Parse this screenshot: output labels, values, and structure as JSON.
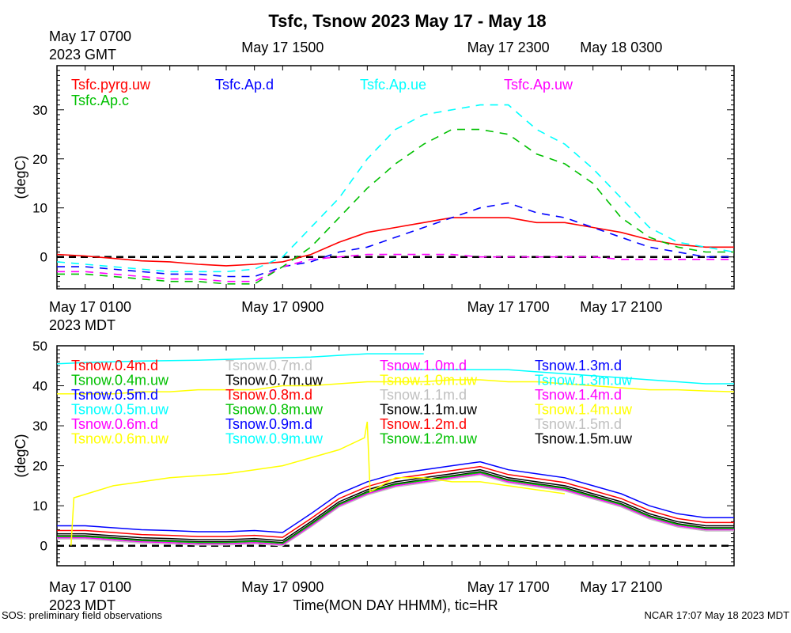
{
  "title": "Tsfc, Tsnow 2023 May 17 - May 18",
  "footer_left": "SOS: preliminary field observations",
  "footer_right": "NCAR 17:07 May 18 2023 MDT",
  "xlabel": "Time(MON DAY HHMM), tic=HR",
  "gmt_ticks": [
    {
      "label": "May 17 1500",
      "hour": 8
    },
    {
      "label": "May 17 2300",
      "hour": 16
    },
    {
      "label": "May 18 0300",
      "hour": 20
    }
  ],
  "gmt_first": {
    "line1": "May 17 0700",
    "line2": "2023 GMT"
  },
  "mdt_ticks": [
    {
      "label": "May 17 0900",
      "hour": 8
    },
    {
      "label": "May 17 1700",
      "hour": 16
    },
    {
      "label": "May 17 2100",
      "hour": 20
    }
  ],
  "mdt_first": {
    "line1": "May 17 0100",
    "line2": "2023 MDT"
  },
  "colors": {
    "red": "#ff0000",
    "blue": "#0000ff",
    "cyan": "#00ffff",
    "magenta": "#ff00ff",
    "green": "#00c000",
    "yellow": "#ffff00",
    "black": "#000000",
    "gray": "#c0c0c0"
  },
  "chart_data": [
    {
      "type": "line",
      "title": "Tsfc",
      "ylabel": "(degC)",
      "xlim": [
        0,
        24
      ],
      "ylim": [
        -6.5,
        39
      ],
      "yticks": [
        0,
        10,
        20,
        30
      ],
      "zero_line": true,
      "series": [
        {
          "name": "Tsfc.pyrg.uw",
          "color": "#ff0000",
          "dash": false,
          "x": [
            0,
            1,
            2,
            3,
            4,
            5,
            6,
            7,
            8,
            9,
            10,
            11,
            12,
            13,
            14,
            15,
            16,
            17,
            18,
            19,
            20,
            21,
            22,
            23,
            24
          ],
          "y": [
            0.5,
            0.2,
            -0.3,
            -0.8,
            -1,
            -1.5,
            -1.8,
            -1.5,
            -1,
            0.5,
            3,
            5,
            6,
            7,
            8,
            8,
            8,
            7,
            7,
            6,
            5,
            3.5,
            2.5,
            2,
            2
          ]
        },
        {
          "name": "Tsfc.Ap.d",
          "color": "#0000ff",
          "dash": true,
          "x": [
            0,
            1,
            2,
            3,
            4,
            5,
            6,
            7,
            8,
            9,
            10,
            11,
            12,
            13,
            14,
            15,
            16,
            17,
            18,
            19,
            20,
            21,
            22,
            23,
            24
          ],
          "y": [
            -2,
            -2,
            -2.5,
            -3,
            -3.5,
            -3.5,
            -4,
            -4,
            -2,
            -1,
            1,
            2,
            4,
            6,
            8,
            10,
            11,
            9,
            8,
            6,
            4,
            2,
            1,
            0,
            0
          ]
        },
        {
          "name": "Tsfc.Ap.ue",
          "color": "#00ffff",
          "dash": true,
          "x": [
            0,
            1,
            2,
            3,
            4,
            5,
            6,
            7,
            8,
            9,
            10,
            11,
            12,
            13,
            14,
            15,
            16,
            17,
            18,
            19,
            20,
            21,
            22,
            23,
            24
          ],
          "y": [
            -1,
            -1.5,
            -2,
            -2.5,
            -3,
            -3,
            -3,
            -2.5,
            0,
            6,
            12,
            20,
            26,
            29,
            30,
            31,
            31,
            26,
            23,
            18,
            12,
            6,
            3,
            2,
            1
          ]
        },
        {
          "name": "Tsfc.Ap.uw",
          "color": "#ff00ff",
          "dash": true,
          "x": [
            0,
            1,
            2,
            3,
            4,
            5,
            6,
            7,
            8,
            9,
            10,
            11,
            12,
            13,
            14,
            15,
            16,
            17,
            18,
            19,
            20,
            21,
            22,
            23,
            24
          ],
          "y": [
            -3,
            -3,
            -3.5,
            -4,
            -4.5,
            -4.5,
            -5,
            -5,
            -2,
            -0.5,
            0,
            0.5,
            0.5,
            0.5,
            0.5,
            0,
            0,
            0,
            0,
            0,
            -0.5,
            -0.5,
            -0.5,
            -0.5,
            -0.5
          ]
        },
        {
          "name": "Tsfc.Ap.c",
          "color": "#00c000",
          "dash": true,
          "x": [
            0,
            1,
            2,
            3,
            4,
            5,
            6,
            7,
            8,
            9,
            10,
            11,
            12,
            13,
            14,
            15,
            16,
            17,
            18,
            19,
            20,
            21,
            22,
            23,
            24
          ],
          "y": [
            -3.5,
            -3.5,
            -4,
            -4.5,
            -5,
            -5,
            -5.5,
            -5.5,
            -2,
            2,
            8,
            14,
            19,
            23,
            26,
            26,
            25,
            21,
            19,
            15,
            8,
            4,
            2,
            1,
            1
          ]
        }
      ]
    },
    {
      "type": "line",
      "title": "Tsnow",
      "ylabel": "(degC)",
      "xlim": [
        0,
        24
      ],
      "ylim": [
        -5,
        50
      ],
      "yticks": [
        0,
        10,
        20,
        30,
        40,
        50
      ],
      "zero_line": true,
      "x": [
        0,
        1,
        2,
        3,
        4,
        5,
        6,
        7,
        8,
        9,
        10,
        11,
        12,
        13,
        14,
        15,
        16,
        17,
        18,
        19,
        20,
        21,
        22,
        23,
        24
      ],
      "band": {
        "base": [
          2,
          2,
          1.5,
          1,
          0.8,
          0.5,
          0.5,
          0.8,
          0.3,
          5,
          10,
          13,
          15,
          16,
          17,
          18,
          16,
          15,
          14,
          12,
          10,
          7,
          5,
          4,
          4
        ],
        "offsets": [
          {
            "name": "Tsnow.1.5m.uw",
            "color": "#000000",
            "offset": 0.5
          },
          {
            "name": "Tsnow.1.5m.d",
            "color": "#c0c0c0",
            "offset": -0.3
          },
          {
            "name": "Tsnow.1.4m.d",
            "color": "#ff00ff",
            "offset": 0
          },
          {
            "name": "Tsnow.1.2m.uw",
            "color": "#00c000",
            "offset": 0.3
          },
          {
            "name": "Tsnow.1.1m.uw",
            "color": "#000000",
            "offset": 1
          },
          {
            "name": "Tsnow.1.2m.d",
            "color": "#ff0000",
            "offset": 1.8
          },
          {
            "name": "Tsnow.1.3m.d",
            "color": "#0000ff",
            "offset": 3
          }
        ]
      },
      "series": [
        {
          "name": "Tsnow.0.5m.uw",
          "color": "#00ffff",
          "y": [
            45.5,
            45.8,
            46,
            46.2,
            46.3,
            46.4,
            46.6,
            46.8,
            47,
            47.2,
            47.6,
            48,
            48,
            48,
            null,
            null,
            null,
            null,
            null,
            null,
            null,
            null,
            null,
            null,
            null
          ]
        },
        {
          "name": "Tsnow.1.3m.uw",
          "color": "#00ffff",
          "y": [
            null,
            null,
            null,
            null,
            null,
            null,
            null,
            null,
            null,
            null,
            null,
            null,
            44,
            44,
            44,
            44,
            44,
            43.5,
            43,
            42.5,
            42,
            41.5,
            41,
            40.5,
            40.5
          ]
        },
        {
          "name": "Tsnow.0.6m.uw",
          "color": "#ffff00",
          "y": [
            0,
            12,
            15,
            16,
            17,
            17.5,
            18,
            19,
            20,
            22,
            24,
            27,
            31,
            13.5,
            17,
            17,
            16,
            16,
            15,
            14,
            13,
            null,
            null,
            null,
            null
          ],
          "x": [
            0.5,
            0.6,
            2,
            3,
            4,
            5,
            6,
            7,
            8,
            9,
            10,
            10.9,
            11,
            11.1,
            12,
            13,
            14,
            15,
            16,
            17,
            18,
            null,
            null,
            null,
            null
          ]
        },
        {
          "name": "Tsnow.1.0m.uw",
          "color": "#ffff00",
          "x": [
            0,
            1,
            2,
            3,
            4,
            5,
            6,
            7,
            8,
            9,
            10,
            11,
            12,
            13,
            14,
            15,
            16,
            17,
            18,
            19,
            20,
            21,
            22,
            23,
            24
          ],
          "y": [
            38,
            38,
            38,
            38.5,
            38.5,
            39,
            39,
            39,
            40,
            40,
            40.5,
            41,
            41,
            41,
            41.5,
            41.5,
            41,
            41,
            40.5,
            40,
            39.5,
            39,
            39,
            38.7,
            38.5
          ]
        }
      ],
      "legend": [
        "Tsnow.0.4m.d",
        "Tsnow.0.4m.uw",
        "Tsnow.0.5m.d",
        "Tsnow.0.5m.uw",
        "Tsnow.0.6m.d",
        "Tsnow.0.6m.uw",
        "Tsnow.0.7m.d",
        "Tsnow.0.7m.uw",
        "Tsnow.0.8m.d",
        "Tsnow.0.8m.uw",
        "Tsnow.0.9m.d",
        "Tsnow.0.9m.uw",
        "Tsnow.1.0m.d",
        "Tsnow.1.0m.uw",
        "Tsnow.1.1m.d",
        "Tsnow.1.1m.uw",
        "Tsnow.1.2m.d",
        "Tsnow.1.2m.uw",
        "Tsnow.1.3m.d",
        "Tsnow.1.3m.uw",
        "Tsnow.1.4m.d",
        "Tsnow.1.4m.uw",
        "Tsnow.1.5m.d",
        "Tsnow.1.5m.uw"
      ],
      "legend_colors": [
        "#ff0000",
        "#00c000",
        "#0000ff",
        "#00ffff",
        "#ff00ff",
        "#ffff00",
        "#c0c0c0",
        "#000000",
        "#ff0000",
        "#00c000",
        "#0000ff",
        "#00ffff",
        "#ff00ff",
        "#ffff00",
        "#c0c0c0",
        "#000000",
        "#ff0000",
        "#00c000",
        "#0000ff",
        "#00ffff",
        "#ff00ff",
        "#ffff00",
        "#c0c0c0",
        "#000000"
      ]
    }
  ]
}
